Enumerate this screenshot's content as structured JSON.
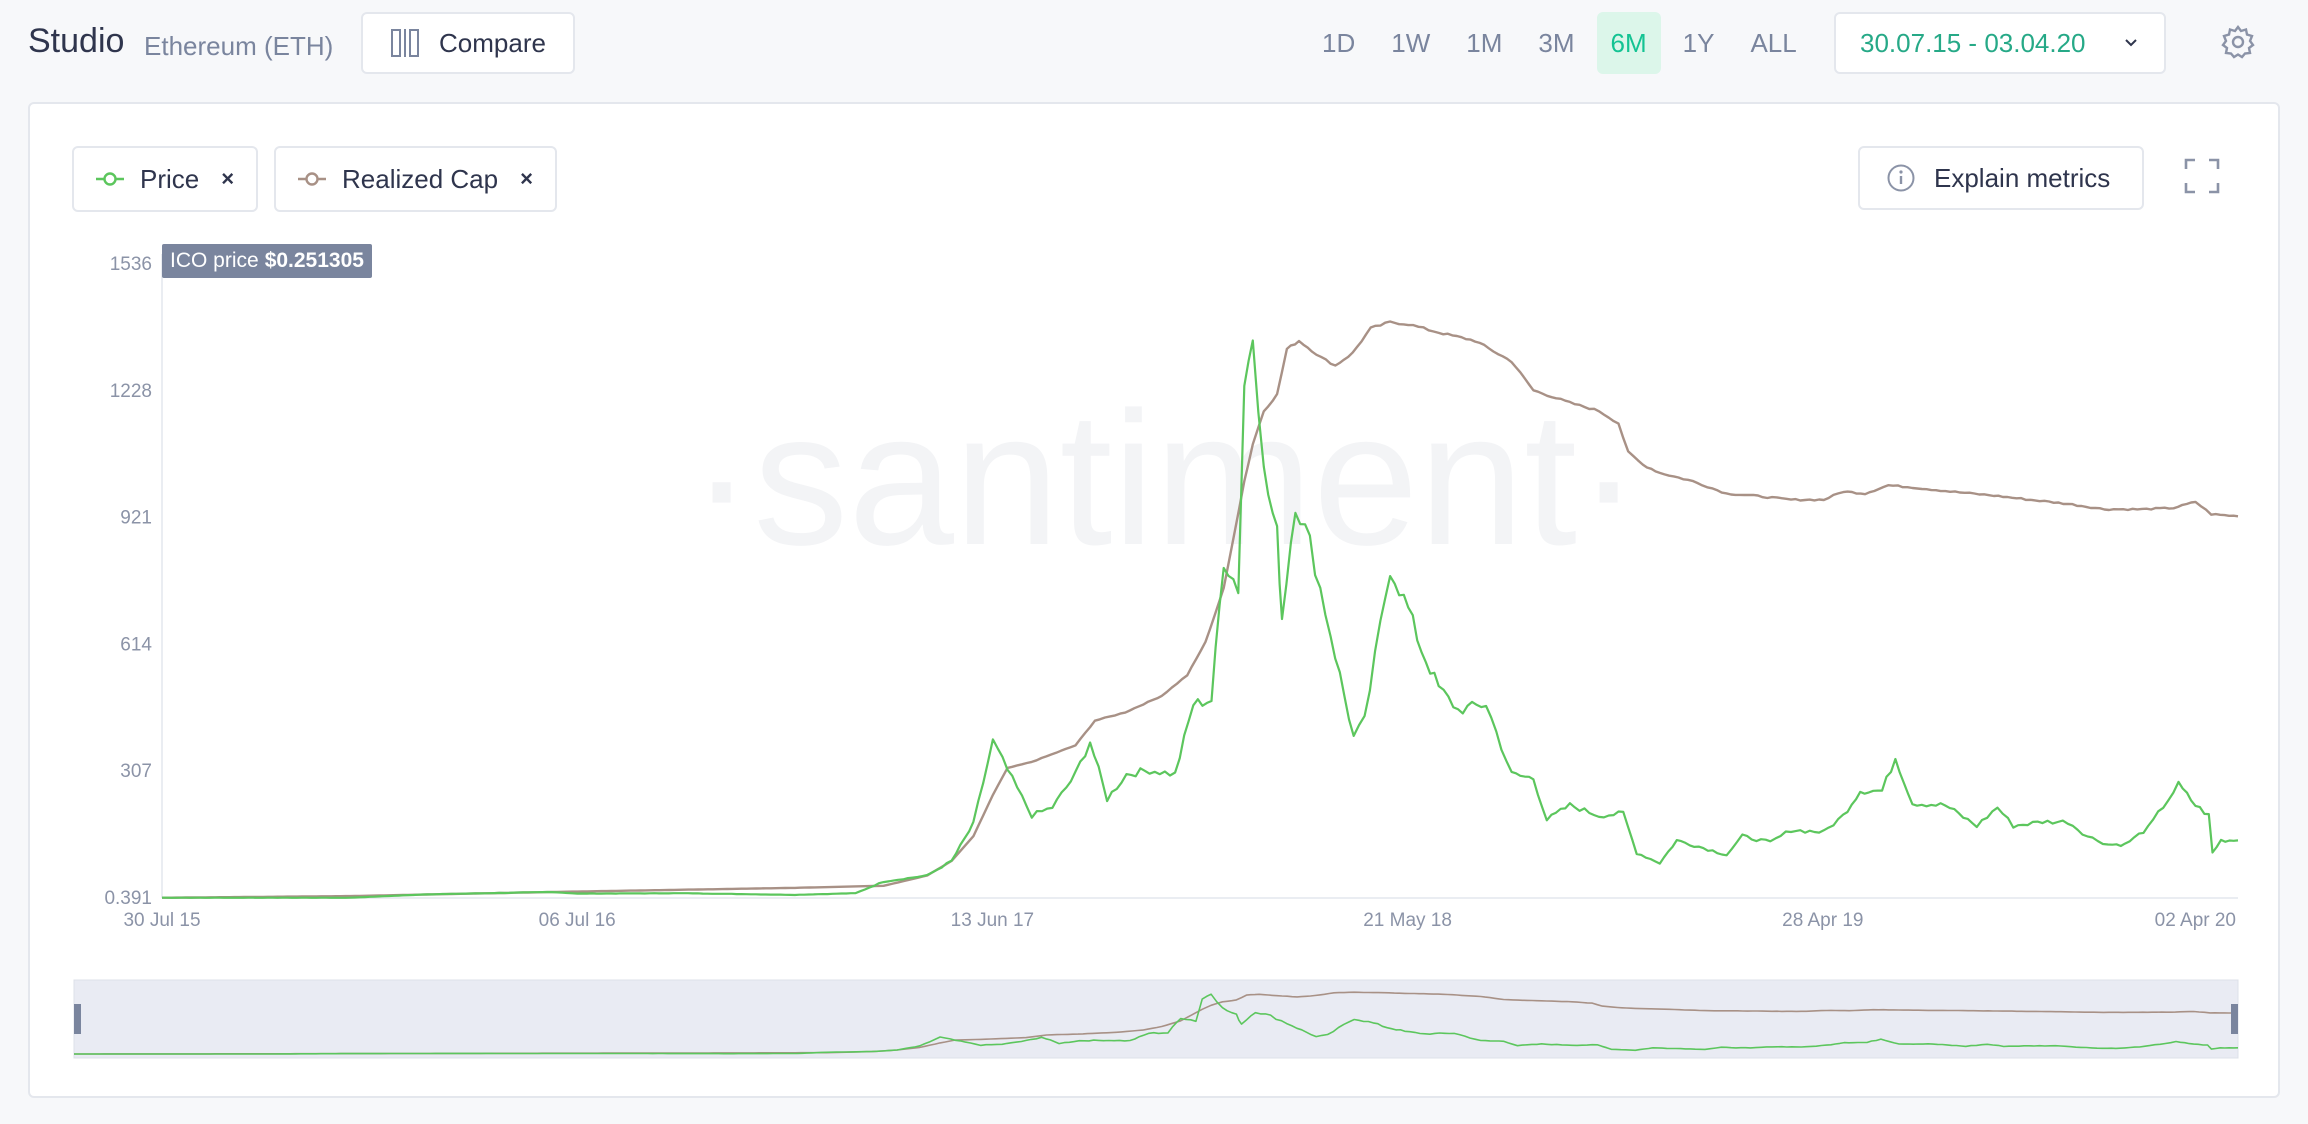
{
  "header": {
    "title": "Studio",
    "asset": "Ethereum (ETH)",
    "compare_label": "Compare",
    "periods": [
      "1D",
      "1W",
      "1M",
      "3M",
      "6M",
      "1Y",
      "ALL"
    ],
    "active_period": "6M",
    "date_range": "30.07.15 - 03.04.20"
  },
  "metrics": [
    {
      "label": "Price",
      "color": "#5cc65d",
      "remove": "×"
    },
    {
      "label": "Realized Cap",
      "color": "#a89186",
      "remove": "×"
    }
  ],
  "explain_label": "Explain metrics",
  "ico": {
    "label": "ICO price",
    "value": "$0.251305"
  },
  "watermark": "·santiment·",
  "colors": {
    "accent": "#14c393",
    "price": "#5cc65d",
    "realized_cap": "#a89186",
    "navigator_bg": "#e9ebf3"
  },
  "chart_data": {
    "type": "line",
    "y_ticks": [
      "1536",
      "1228",
      "921",
      "614",
      "307",
      "0.391"
    ],
    "x_ticks": [
      "30 Jul 15",
      "06 Jul 16",
      "13 Jun 17",
      "21 May 18",
      "28 Apr 19",
      "02 Apr 20"
    ],
    "xlim": [
      "2015-07-30",
      "2020-04-03"
    ],
    "ylim": [
      0.391,
      1536
    ],
    "series": [
      {
        "name": "Price",
        "color": "#5cc65d",
        "points": [
          [
            "2015-07-30",
            1
          ],
          [
            "2015-10-01",
            1
          ],
          [
            "2016-01-01",
            1
          ],
          [
            "2016-03-01",
            9
          ],
          [
            "2016-06-15",
            15
          ],
          [
            "2016-07-06",
            11
          ],
          [
            "2016-10-01",
            12
          ],
          [
            "2017-01-01",
            8
          ],
          [
            "2017-02-20",
            12
          ],
          [
            "2017-03-15",
            40
          ],
          [
            "2017-04-20",
            55
          ],
          [
            "2017-05-10",
            90
          ],
          [
            "2017-05-28",
            180
          ],
          [
            "2017-06-13",
            380
          ],
          [
            "2017-06-25",
            310
          ],
          [
            "2017-07-15",
            200
          ],
          [
            "2017-08-01",
            220
          ],
          [
            "2017-08-20",
            300
          ],
          [
            "2017-09-01",
            380
          ],
          [
            "2017-09-15",
            240
          ],
          [
            "2017-10-01",
            300
          ],
          [
            "2017-10-20",
            310
          ],
          [
            "2017-11-10",
            300
          ],
          [
            "2017-11-25",
            470
          ],
          [
            "2017-12-10",
            480
          ],
          [
            "2017-12-20",
            820
          ],
          [
            "2018-01-01",
            750
          ],
          [
            "2018-01-06",
            1240
          ],
          [
            "2018-01-13",
            1390
          ],
          [
            "2018-01-22",
            1030
          ],
          [
            "2018-02-02",
            880
          ],
          [
            "2018-02-06",
            680
          ],
          [
            "2018-02-17",
            960
          ],
          [
            "2018-03-01",
            860
          ],
          [
            "2018-03-18",
            640
          ],
          [
            "2018-04-06",
            390
          ],
          [
            "2018-04-15",
            430
          ],
          [
            "2018-04-28",
            660
          ],
          [
            "2018-05-06",
            800
          ],
          [
            "2018-05-21",
            700
          ],
          [
            "2018-06-01",
            600
          ],
          [
            "2018-06-15",
            510
          ],
          [
            "2018-07-01",
            455
          ],
          [
            "2018-07-24",
            470
          ],
          [
            "2018-08-14",
            300
          ],
          [
            "2018-09-01",
            290
          ],
          [
            "2018-09-12",
            190
          ],
          [
            "2018-10-01",
            225
          ],
          [
            "2018-10-25",
            200
          ],
          [
            "2018-11-14",
            205
          ],
          [
            "2018-11-25",
            110
          ],
          [
            "2018-12-14",
            85
          ],
          [
            "2018-12-28",
            140
          ],
          [
            "2019-01-15",
            125
          ],
          [
            "2019-02-07",
            105
          ],
          [
            "2019-02-20",
            150
          ],
          [
            "2019-03-15",
            135
          ],
          [
            "2019-04-01",
            165
          ],
          [
            "2019-04-28",
            160
          ],
          [
            "2019-05-14",
            200
          ],
          [
            "2019-05-28",
            260
          ],
          [
            "2019-06-15",
            260
          ],
          [
            "2019-06-26",
            340
          ],
          [
            "2019-07-10",
            230
          ],
          [
            "2019-08-06",
            225
          ],
          [
            "2019-09-01",
            175
          ],
          [
            "2019-09-18",
            220
          ],
          [
            "2019-10-01",
            175
          ],
          [
            "2019-10-25",
            185
          ],
          [
            "2019-11-15",
            185
          ],
          [
            "2019-12-01",
            150
          ],
          [
            "2019-12-18",
            130
          ],
          [
            "2020-01-01",
            130
          ],
          [
            "2020-01-20",
            170
          ],
          [
            "2020-02-14",
            275
          ],
          [
            "2020-02-28",
            225
          ],
          [
            "2020-03-10",
            200
          ],
          [
            "2020-03-13",
            110
          ],
          [
            "2020-03-20",
            140
          ],
          [
            "2020-04-03",
            140
          ]
        ]
      },
      {
        "name": "Realized Cap",
        "color": "#a89186",
        "points": [
          [
            "2015-07-30",
            1
          ],
          [
            "2016-01-01",
            5
          ],
          [
            "2016-06-15",
            15
          ],
          [
            "2016-07-06",
            16
          ],
          [
            "2017-01-01",
            25
          ],
          [
            "2017-03-15",
            30
          ],
          [
            "2017-04-20",
            55
          ],
          [
            "2017-05-10",
            90
          ],
          [
            "2017-05-28",
            150
          ],
          [
            "2017-06-13",
            250
          ],
          [
            "2017-06-25",
            315
          ],
          [
            "2017-07-15",
            330
          ],
          [
            "2017-08-20",
            370
          ],
          [
            "2017-09-05",
            430
          ],
          [
            "2017-09-30",
            450
          ],
          [
            "2017-10-30",
            490
          ],
          [
            "2017-11-20",
            540
          ],
          [
            "2017-12-05",
            620
          ],
          [
            "2017-12-20",
            750
          ],
          [
            "2018-01-06",
            1010
          ],
          [
            "2018-01-13",
            1100
          ],
          [
            "2018-01-22",
            1180
          ],
          [
            "2018-02-02",
            1220
          ],
          [
            "2018-02-10",
            1330
          ],
          [
            "2018-02-20",
            1350
          ],
          [
            "2018-03-10",
            1310
          ],
          [
            "2018-03-22",
            1290
          ],
          [
            "2018-04-05",
            1320
          ],
          [
            "2018-04-20",
            1380
          ],
          [
            "2018-05-06",
            1395
          ],
          [
            "2018-05-21",
            1390
          ],
          [
            "2018-06-15",
            1370
          ],
          [
            "2018-07-15",
            1350
          ],
          [
            "2018-08-14",
            1300
          ],
          [
            "2018-09-01",
            1230
          ],
          [
            "2018-10-01",
            1200
          ],
          [
            "2018-10-25",
            1180
          ],
          [
            "2018-11-10",
            1150
          ],
          [
            "2018-11-18",
            1080
          ],
          [
            "2018-11-30",
            1050
          ],
          [
            "2018-12-14",
            1030
          ],
          [
            "2019-01-10",
            1010
          ],
          [
            "2019-02-07",
            980
          ],
          [
            "2019-03-01",
            975
          ],
          [
            "2019-04-01",
            965
          ],
          [
            "2019-04-28",
            965
          ],
          [
            "2019-05-14",
            985
          ],
          [
            "2019-06-01",
            980
          ],
          [
            "2019-06-20",
            1000
          ],
          [
            "2019-07-10",
            995
          ],
          [
            "2019-08-10",
            985
          ],
          [
            "2019-09-15",
            975
          ],
          [
            "2019-10-15",
            965
          ],
          [
            "2019-11-15",
            955
          ],
          [
            "2019-12-15",
            942
          ],
          [
            "2020-01-15",
            942
          ],
          [
            "2020-02-10",
            945
          ],
          [
            "2020-02-28",
            960
          ],
          [
            "2020-03-12",
            930
          ],
          [
            "2020-04-03",
            925
          ]
        ]
      }
    ]
  }
}
